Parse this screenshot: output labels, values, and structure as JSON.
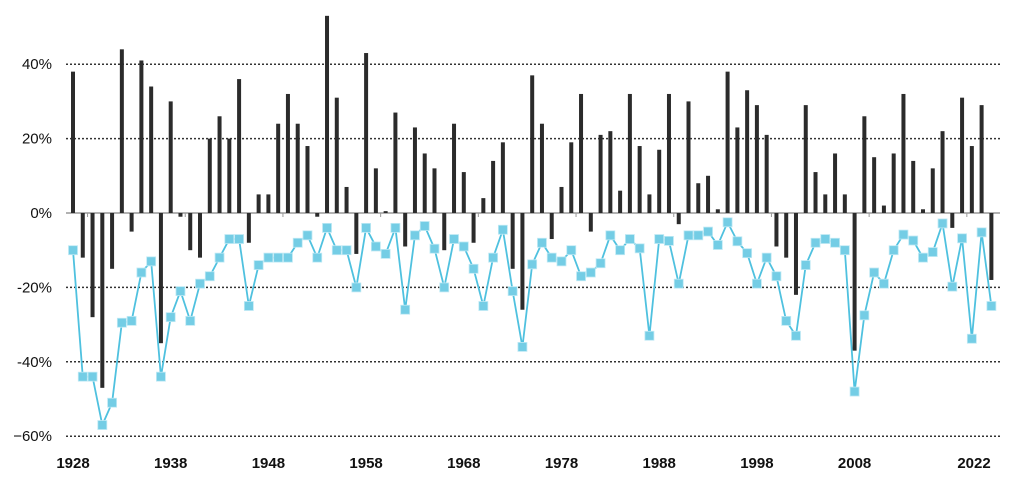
{
  "chart_data": {
    "type": "bar+line",
    "title": "",
    "xlabel": "",
    "ylabel": "",
    "ylim": [
      -60,
      55
    ],
    "grid": true,
    "y_ticks": [
      {
        "v": 40,
        "label": "40%"
      },
      {
        "v": 20,
        "label": "20%"
      },
      {
        "v": 0,
        "label": "0%"
      },
      {
        "v": -20,
        "label": "-20%"
      },
      {
        "v": -40,
        "label": "-40%"
      },
      {
        "v": -60,
        "label": "−60%"
      }
    ],
    "x_ticks": [
      {
        "v": 1928,
        "label": "1928"
      },
      {
        "v": 1938,
        "label": "1938"
      },
      {
        "v": 1948,
        "label": "1948"
      },
      {
        "v": 1958,
        "label": "1958"
      },
      {
        "v": 1968,
        "label": "1968"
      },
      {
        "v": 1978,
        "label": "1978"
      },
      {
        "v": 1988,
        "label": "1988"
      },
      {
        "v": 1998,
        "label": "1998"
      },
      {
        "v": 2008,
        "label": "2008"
      },
      {
        "v": 2022,
        "label": "2022"
      }
    ],
    "start_year": 1928,
    "colors": {
      "bars": "#2b2b2b",
      "line": "#4fc1df",
      "markers": "#74cde5",
      "grid": "#333333",
      "zero_line": "#999999"
    },
    "series": [
      {
        "type": "bar",
        "values": [
          38,
          -12,
          -28,
          -47,
          -15,
          44,
          -5,
          41,
          34,
          -35,
          30,
          -1,
          -10,
          -12,
          20,
          26,
          20,
          36,
          -8,
          5,
          5,
          24,
          32,
          24,
          18,
          -1,
          53,
          31,
          7,
          -11,
          43,
          12,
          0.5,
          27,
          -9,
          23,
          16,
          12,
          -10,
          24,
          11,
          -8,
          4,
          14,
          19,
          -15,
          -26,
          37,
          24,
          -7,
          7,
          19,
          32,
          -5,
          21,
          22,
          6,
          32,
          18,
          5,
          17,
          32,
          -3,
          30,
          8,
          10,
          1,
          38,
          23,
          33,
          29,
          21,
          -9,
          -12,
          -22,
          29,
          11,
          5,
          16,
          5,
          -37,
          26,
          15,
          2,
          16,
          32,
          14,
          1,
          12,
          22,
          -4,
          31,
          18,
          29,
          -18
        ]
      },
      {
        "type": "line",
        "values": [
          -10,
          -44,
          -44,
          -57,
          -51,
          -29.5,
          -29,
          -16,
          -13,
          -44,
          -28,
          -21,
          -29,
          -19,
          -17,
          -12,
          -7,
          -7,
          -25,
          -14,
          -12,
          -12,
          -12,
          -8,
          -6,
          -12,
          -4,
          -10,
          -10,
          -20,
          -4,
          -9,
          -11,
          -4,
          -26,
          -6,
          -3.5,
          -9.6,
          -20,
          -7,
          -9,
          -15,
          -25,
          -12,
          -4.5,
          -21,
          -36,
          -13.8,
          -8,
          -12,
          -13,
          -10,
          -17,
          -16,
          -13.5,
          -6,
          -10,
          -7,
          -9.5,
          -33,
          -7,
          -7.5,
          -19,
          -6,
          -6,
          -5,
          -8.6,
          -2.5,
          -7.6,
          -10.8,
          -19,
          -12,
          -17,
          -29,
          -33,
          -14,
          -8,
          -7,
          -8,
          -10,
          -48,
          -27.5,
          -16,
          -19,
          -10,
          -5.8,
          -7.4,
          -12,
          -10.5,
          -2.8,
          -19.8,
          -6.8,
          -33.8,
          -5.2,
          -25
        ]
      }
    ]
  }
}
